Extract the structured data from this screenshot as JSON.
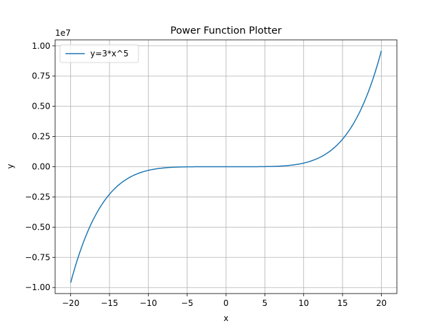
{
  "chart_data": {
    "type": "line",
    "title": "Power Function Plotter",
    "xlabel": "x",
    "ylabel": "y",
    "y_offset_label": "1e7",
    "xlim": [
      -22,
      22
    ],
    "ylim": [
      -1.05,
      1.05
    ],
    "y_scale_factor": 10000000,
    "grid": true,
    "legend_position": "upper-left",
    "x_ticks": [
      -20,
      -15,
      -10,
      -5,
      0,
      5,
      10,
      15,
      20
    ],
    "x_tick_labels": [
      "−20",
      "−15",
      "−10",
      "−5",
      "0",
      "5",
      "10",
      "15",
      "20"
    ],
    "y_ticks": [
      -1.0,
      -0.75,
      -0.5,
      -0.25,
      0.0,
      0.25,
      0.5,
      0.75,
      1.0
    ],
    "y_tick_labels": [
      "−1.00",
      "−0.75",
      "−0.50",
      "−0.25",
      "0.00",
      "0.25",
      "0.50",
      "0.75",
      "1.00"
    ],
    "series": [
      {
        "name": "y=3*x^5",
        "color": "#1f77b4",
        "function": "3*x^5",
        "x_range": [
          -20,
          20
        ],
        "sample_points": [
          {
            "x": -20,
            "y": -9600000
          },
          {
            "x": -15,
            "y": -2278125
          },
          {
            "x": -10,
            "y": -300000
          },
          {
            "x": -5,
            "y": -9375
          },
          {
            "x": 0,
            "y": 0
          },
          {
            "x": 5,
            "y": 9375
          },
          {
            "x": 10,
            "y": 300000
          },
          {
            "x": 15,
            "y": 2278125
          },
          {
            "x": 20,
            "y": 9600000
          }
        ]
      }
    ]
  }
}
